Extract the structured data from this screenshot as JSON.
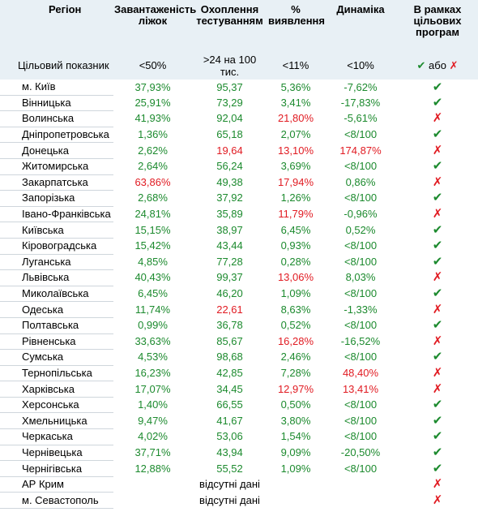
{
  "headers": {
    "region": "Регіон",
    "beds": "Завантаженість ліжок",
    "testing": "Охоплення тестуванням",
    "detection": "% виявлення",
    "dynamics": "Динаміка",
    "programs": "В рамках цільових програм"
  },
  "target": {
    "label": "Цільовий показник",
    "beds": "<50%",
    "testing": ">24 на 100 тис.",
    "detection": "<11%",
    "dynamics": "<10%",
    "check_symbol": "✔",
    "or_text": "або",
    "cross_symbol": "✗"
  },
  "symbols": {
    "yes": "✔",
    "no": "✗"
  },
  "colors": {
    "good": "#1c8a2e",
    "bad": "#e11b22",
    "header_bg": "#e8f0f5"
  },
  "rows": [
    {
      "region": "м. Київ",
      "beds": "37,93%",
      "testing": "95,37",
      "detection": "5,36%",
      "dynamics": "-7,62%",
      "in_program": true,
      "bad": []
    },
    {
      "region": "Вінницька",
      "beds": "25,91%",
      "testing": "73,29",
      "detection": "3,41%",
      "dynamics": "-17,83%",
      "in_program": true,
      "bad": []
    },
    {
      "region": "Волинська",
      "beds": "41,93%",
      "testing": "92,04",
      "detection": "21,80%",
      "dynamics": "-5,61%",
      "in_program": false,
      "bad": [
        "detection"
      ]
    },
    {
      "region": "Дніпропетровська",
      "beds": "1,36%",
      "testing": "65,18",
      "detection": "2,07%",
      "dynamics": "<8/100",
      "in_program": true,
      "bad": []
    },
    {
      "region": "Донецька",
      "beds": "2,62%",
      "testing": "19,64",
      "detection": "13,10%",
      "dynamics": "174,87%",
      "in_program": false,
      "bad": [
        "testing",
        "detection",
        "dynamics"
      ]
    },
    {
      "region": "Житомирська",
      "beds": "2,64%",
      "testing": "56,24",
      "detection": "3,69%",
      "dynamics": "<8/100",
      "in_program": true,
      "bad": []
    },
    {
      "region": "Закарпатська",
      "beds": "63,86%",
      "testing": "49,38",
      "detection": "17,94%",
      "dynamics": "0,86%",
      "in_program": false,
      "bad": [
        "beds",
        "detection"
      ]
    },
    {
      "region": "Запорізька",
      "beds": "2,68%",
      "testing": "37,92",
      "detection": "1,26%",
      "dynamics": "<8/100",
      "in_program": true,
      "bad": []
    },
    {
      "region": "Івано-Франківська",
      "beds": "24,81%",
      "testing": "35,89",
      "detection": "11,79%",
      "dynamics": "-0,96%",
      "in_program": false,
      "bad": [
        "detection"
      ]
    },
    {
      "region": "Київська",
      "beds": "15,15%",
      "testing": "38,97",
      "detection": "6,45%",
      "dynamics": "0,52%",
      "in_program": true,
      "bad": []
    },
    {
      "region": "Кіровоградська",
      "beds": "15,42%",
      "testing": "43,44",
      "detection": "0,93%",
      "dynamics": "<8/100",
      "in_program": true,
      "bad": []
    },
    {
      "region": "Луганська",
      "beds": "4,85%",
      "testing": "77,28",
      "detection": "0,28%",
      "dynamics": "<8/100",
      "in_program": true,
      "bad": []
    },
    {
      "region": "Львівська",
      "beds": "40,43%",
      "testing": "99,37",
      "detection": "13,06%",
      "dynamics": "8,03%",
      "in_program": false,
      "bad": [
        "detection"
      ]
    },
    {
      "region": "Миколаївська",
      "beds": "6,45%",
      "testing": "46,20",
      "detection": "1,09%",
      "dynamics": "<8/100",
      "in_program": true,
      "bad": []
    },
    {
      "region": "Одеська",
      "beds": "11,74%",
      "testing": "22,61",
      "detection": "8,63%",
      "dynamics": "-1,33%",
      "in_program": false,
      "bad": [
        "testing"
      ]
    },
    {
      "region": "Полтавська",
      "beds": "0,99%",
      "testing": "36,78",
      "detection": "0,52%",
      "dynamics": "<8/100",
      "in_program": true,
      "bad": []
    },
    {
      "region": "Рівненська",
      "beds": "33,63%",
      "testing": "85,67",
      "detection": "16,28%",
      "dynamics": "-16,52%",
      "in_program": false,
      "bad": [
        "detection"
      ]
    },
    {
      "region": "Сумська",
      "beds": "4,53%",
      "testing": "98,68",
      "detection": "2,46%",
      "dynamics": "<8/100",
      "in_program": true,
      "bad": []
    },
    {
      "region": "Тернопільська",
      "beds": "16,23%",
      "testing": "42,85",
      "detection": "7,28%",
      "dynamics": "48,40%",
      "in_program": false,
      "bad": [
        "dynamics"
      ]
    },
    {
      "region": "Харківська",
      "beds": "17,07%",
      "testing": "34,45",
      "detection": "12,97%",
      "dynamics": "13,41%",
      "in_program": false,
      "bad": [
        "detection",
        "dynamics"
      ]
    },
    {
      "region": "Херсонська",
      "beds": "1,40%",
      "testing": "66,55",
      "detection": "0,50%",
      "dynamics": "<8/100",
      "in_program": true,
      "bad": []
    },
    {
      "region": "Хмельницька",
      "beds": "9,47%",
      "testing": "41,67",
      "detection": "3,80%",
      "dynamics": "<8/100",
      "in_program": true,
      "bad": []
    },
    {
      "region": "Черкаська",
      "beds": "4,02%",
      "testing": "53,06",
      "detection": "1,54%",
      "dynamics": "<8/100",
      "in_program": true,
      "bad": []
    },
    {
      "region": "Чернівецька",
      "beds": "37,71%",
      "testing": "43,94",
      "detection": "9,09%",
      "dynamics": "-20,50%",
      "in_program": true,
      "bad": []
    },
    {
      "region": "Чернігівська",
      "beds": "12,88%",
      "testing": "55,52",
      "detection": "1,09%",
      "dynamics": "<8/100",
      "in_program": true,
      "bad": []
    },
    {
      "region": "АР Крим",
      "no_data": "відсутні дані",
      "in_program": false
    },
    {
      "region": "м. Севастополь",
      "no_data": "відсутні дані",
      "in_program": false
    }
  ]
}
